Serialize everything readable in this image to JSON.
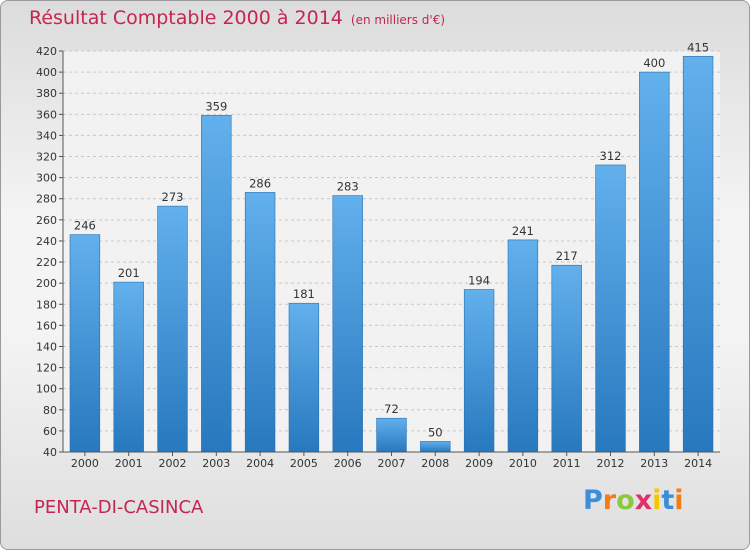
{
  "header": {
    "title": "Résultat Comptable 2000 à 2014",
    "unit_note": "(en milliers d'€)"
  },
  "footer": {
    "city": "PENTA-DI-CASINCA",
    "brand": "Proxiti"
  },
  "colors": {
    "bar_light": "#62b0ec",
    "bar_dark": "#2878bf",
    "accent": "#c5264f"
  },
  "chart_data": {
    "type": "bar",
    "title": "Résultat Comptable 2000 à 2014",
    "categories": [
      "2000",
      "2001",
      "2002",
      "2003",
      "2004",
      "2005",
      "2006",
      "2007",
      "2008",
      "2009",
      "2010",
      "2011",
      "2012",
      "2013",
      "2014"
    ],
    "values": [
      246,
      201,
      273,
      359,
      286,
      181,
      283,
      72,
      50,
      194,
      241,
      217,
      312,
      400,
      415
    ],
    "ylim": [
      40,
      420
    ],
    "ytick_step": 20,
    "grid": "horizontal",
    "data_labels": true
  }
}
